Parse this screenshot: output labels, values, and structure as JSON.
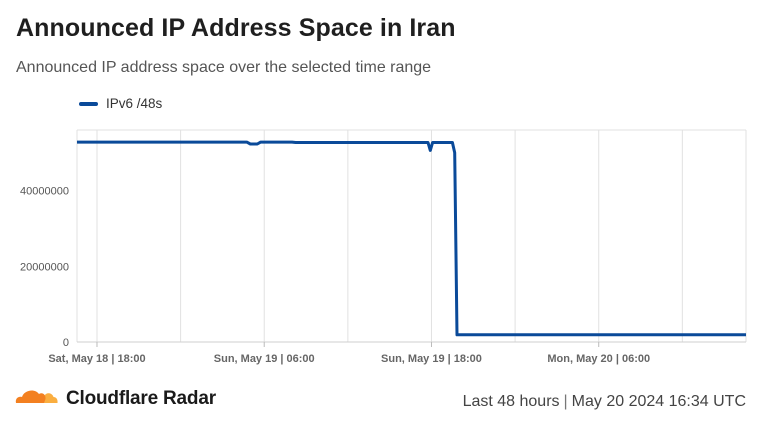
{
  "title": "Announced IP Address Space in Iran",
  "subtitle": "Announced IP address space over the selected time range",
  "footer": {
    "brand": "Cloudflare Radar",
    "range": "Last 48 hours",
    "timestamp": "May 20 2024 16:34 UTC"
  },
  "colors": {
    "series": "#0a4a99",
    "grid": "#e1e1e1",
    "logo_dark": "#f38020",
    "logo_light": "#faae40"
  },
  "chart_data": {
    "type": "line",
    "legend_position": "top-left",
    "grid": true,
    "xlim": [
      "2024-05-18T16:34",
      "2024-05-20T16:34"
    ],
    "ylim": [
      0,
      56000000
    ],
    "yticks": [
      0,
      20000000,
      40000000
    ],
    "ytick_labels": [
      "0",
      "20000000",
      "40000000"
    ],
    "xticks": [
      "2024-05-18T18:00",
      "2024-05-19T06:00",
      "2024-05-19T18:00",
      "2024-05-20T06:00"
    ],
    "xtick_labels": [
      "Sat, May 18 | 18:00",
      "Sun, May 19 | 06:00",
      "Sun, May 19 | 18:00",
      "Mon, May 20 | 06:00"
    ],
    "series": [
      {
        "name": "IPv6 /48s",
        "points": [
          [
            "2024-05-18T16:34",
            52800000
          ],
          [
            "2024-05-19T04:45",
            52800000
          ],
          [
            "2024-05-19T05:00",
            52300000
          ],
          [
            "2024-05-19T05:30",
            52300000
          ],
          [
            "2024-05-19T05:45",
            52800000
          ],
          [
            "2024-05-19T08:00",
            52800000
          ],
          [
            "2024-05-19T08:15",
            52700000
          ],
          [
            "2024-05-19T17:45",
            52700000
          ],
          [
            "2024-05-19T17:55",
            50600000
          ],
          [
            "2024-05-19T18:05",
            52700000
          ],
          [
            "2024-05-19T19:30",
            52700000
          ],
          [
            "2024-05-19T19:40",
            50000000
          ],
          [
            "2024-05-19T19:50",
            1900000
          ],
          [
            "2024-05-20T16:34",
            1900000
          ]
        ]
      }
    ]
  }
}
